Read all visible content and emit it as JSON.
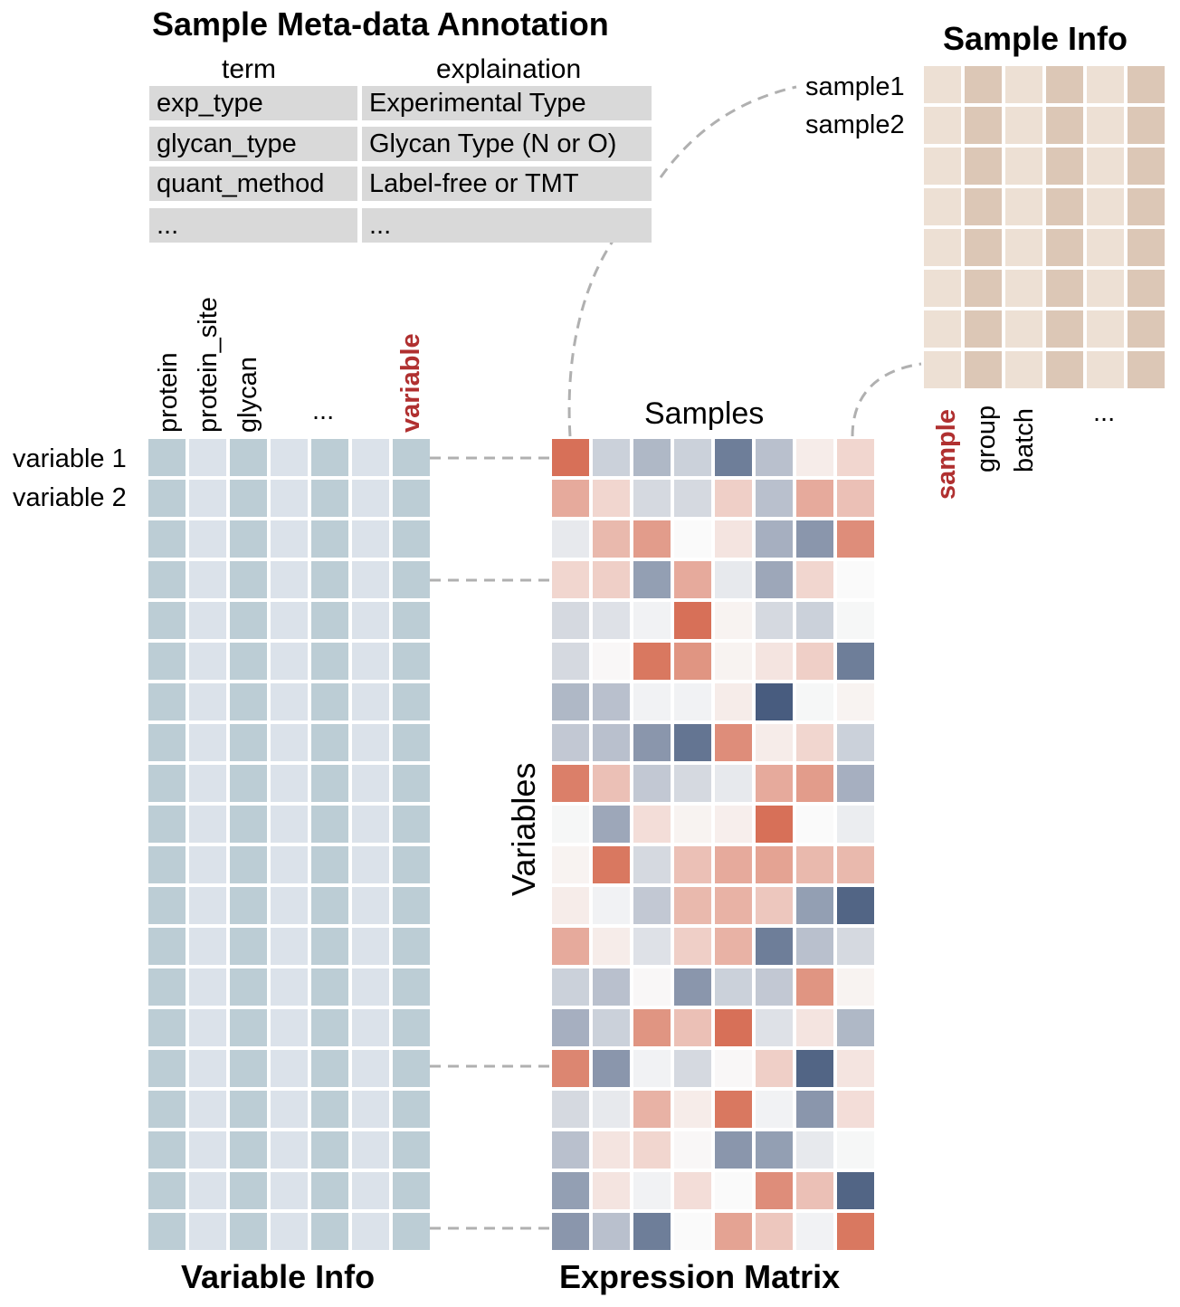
{
  "titles": {
    "meta": "Sample Meta-data Annotation",
    "sample_info": "Sample Info",
    "variable_info": "Variable Info",
    "expression_matrix": "Expression Matrix"
  },
  "meta_table": {
    "header_term": "term",
    "header_explanation": "explaination",
    "rows": [
      {
        "term": "exp_type",
        "explanation": "Experimental Type"
      },
      {
        "term": "glycan_type",
        "explanation": "Glycan Type (N or O)"
      },
      {
        "term": "quant_method",
        "explanation": "Label-free or TMT"
      },
      {
        "term": "...",
        "explanation": "..."
      }
    ]
  },
  "variable_info": {
    "columns": [
      "protein",
      "protein_site",
      "glycan",
      "...",
      "variable"
    ],
    "row_labels": [
      "variable 1",
      "variable 2"
    ],
    "n_rows": 20,
    "n_cols": 7,
    "colors": {
      "dark": "#bccdd5",
      "light": "#dbe2ea"
    }
  },
  "sample_info": {
    "row_labels": [
      "sample1",
      "sample2"
    ],
    "columns": [
      "sample",
      "group",
      "batch",
      "..."
    ],
    "n_rows": 8,
    "n_cols": 6,
    "colors": {
      "light": "#ede0d4",
      "dark": "#dcc7b6"
    }
  },
  "expression": {
    "x_label": "Samples",
    "y_label": "Variables",
    "colors": {
      "high": "#d5694f",
      "low": "#3f5478",
      "mid": "#fafafa"
    },
    "matrix": [
      [
        0.95,
        -0.25,
        -0.4,
        -0.25,
        -0.75,
        -0.35,
        0.1,
        0.25
      ],
      [
        0.55,
        0.25,
        -0.2,
        -0.2,
        0.3,
        -0.35,
        0.55,
        0.4
      ],
      [
        -0.1,
        0.45,
        0.65,
        0.0,
        0.15,
        -0.45,
        -0.6,
        0.75
      ],
      [
        0.25,
        0.3,
        -0.55,
        0.55,
        -0.1,
        -0.5,
        0.25,
        0.0
      ],
      [
        -0.2,
        -0.15,
        -0.05,
        0.95,
        0.05,
        -0.2,
        -0.25,
        -0.02
      ],
      [
        -0.2,
        0.02,
        0.9,
        0.7,
        0.05,
        0.15,
        0.3,
        -0.75
      ],
      [
        -0.4,
        -0.35,
        -0.05,
        -0.05,
        0.1,
        -0.95,
        -0.02,
        0.05
      ],
      [
        -0.3,
        -0.35,
        -0.6,
        -0.8,
        0.75,
        0.1,
        0.25,
        -0.25
      ],
      [
        0.85,
        0.4,
        -0.3,
        -0.2,
        -0.1,
        0.55,
        0.65,
        -0.45
      ],
      [
        -0.02,
        -0.5,
        0.2,
        0.05,
        0.08,
        0.95,
        0.0,
        -0.08
      ],
      [
        0.05,
        0.9,
        -0.2,
        0.4,
        0.55,
        0.6,
        0.45,
        0.45
      ],
      [
        0.1,
        -0.05,
        -0.3,
        0.45,
        0.5,
        0.35,
        -0.55,
        -0.9
      ],
      [
        0.55,
        0.1,
        -0.15,
        0.3,
        0.5,
        -0.75,
        -0.35,
        -0.2
      ],
      [
        -0.25,
        -0.35,
        0.02,
        -0.6,
        -0.25,
        -0.3,
        0.7,
        0.05
      ],
      [
        -0.45,
        -0.25,
        0.7,
        0.4,
        0.95,
        -0.15,
        0.15,
        -0.4
      ],
      [
        0.8,
        -0.6,
        -0.05,
        -0.2,
        0.02,
        0.3,
        -0.9,
        0.15
      ],
      [
        -0.2,
        -0.1,
        0.5,
        0.1,
        0.9,
        -0.05,
        -0.6,
        0.2
      ],
      [
        -0.35,
        0.15,
        0.25,
        0.02,
        -0.6,
        -0.55,
        -0.1,
        -0.02
      ],
      [
        -0.55,
        0.15,
        -0.05,
        0.2,
        0.0,
        0.75,
        0.4,
        -0.9
      ],
      [
        -0.6,
        -0.35,
        -0.75,
        0.0,
        0.6,
        0.35,
        -0.05,
        0.9
      ]
    ]
  },
  "connector_color": "#b0b0b0"
}
